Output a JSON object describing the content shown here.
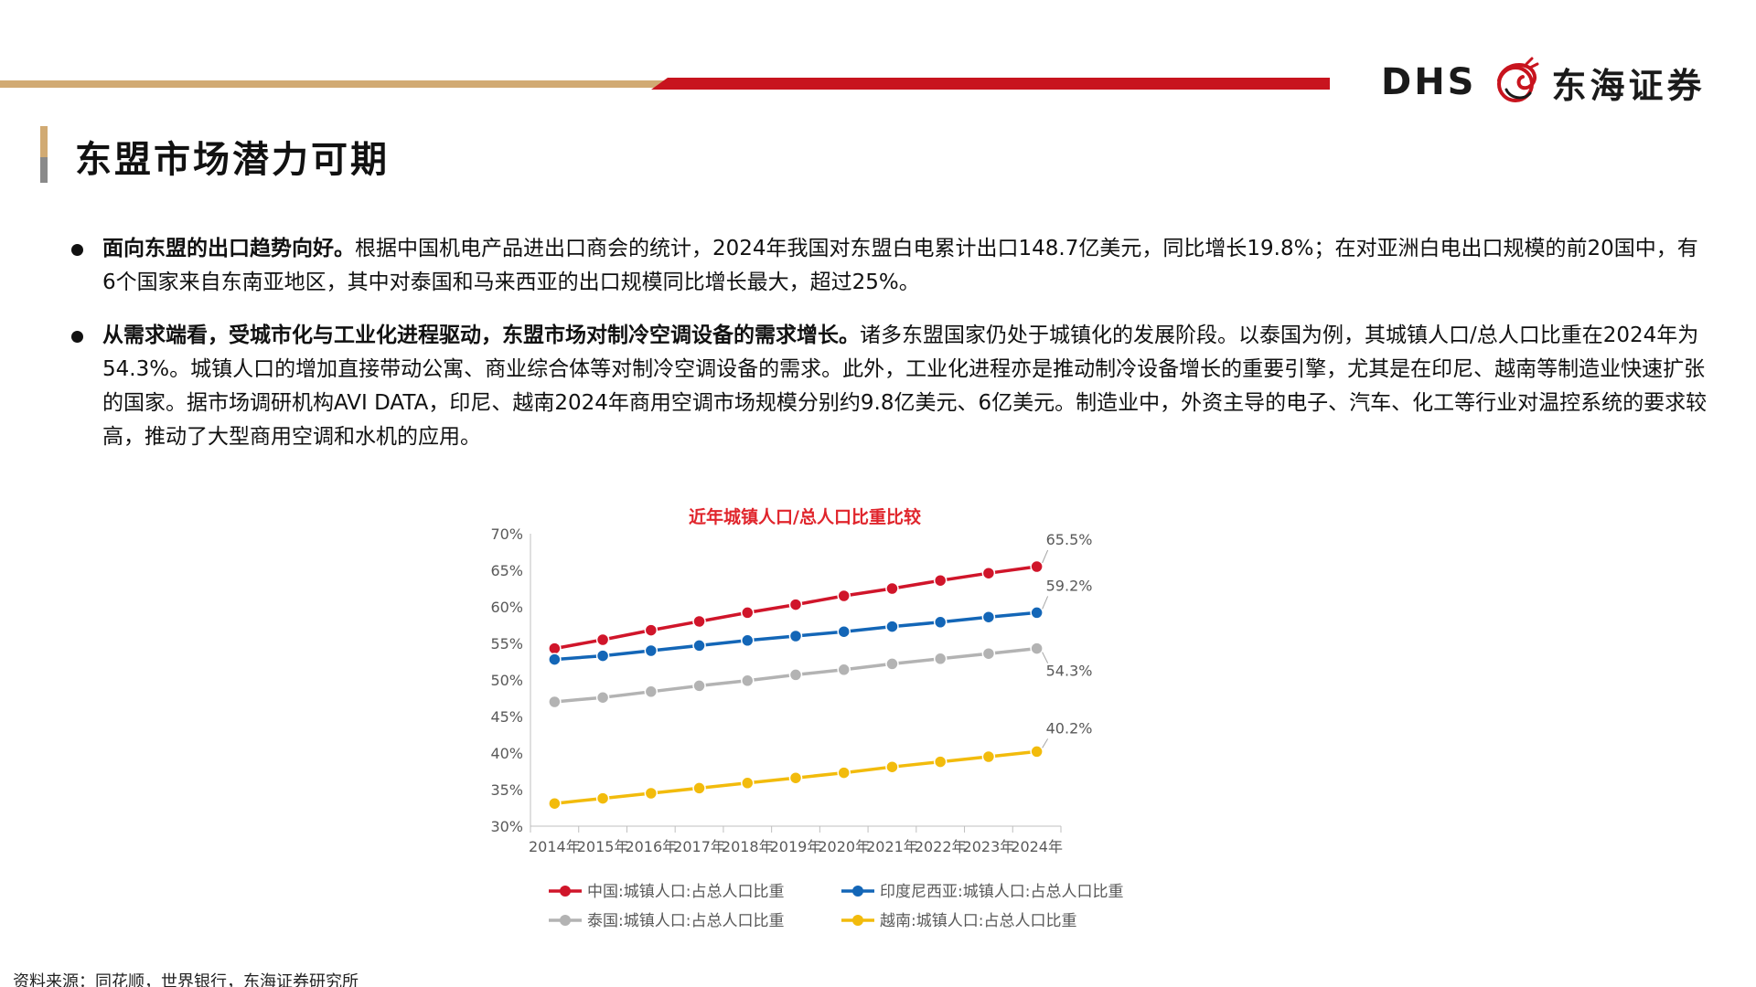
{
  "header": {
    "logo_latin": "DHS",
    "logo_cn": "东海证券",
    "colors": {
      "gold": "#d1aa73",
      "red": "#c8141e"
    }
  },
  "page_title": "东盟市场潜力可期",
  "bullets": [
    {
      "bold": "面向东盟的出口趋势向好。",
      "text": "根据中国机电产品进出口商会的统计，2024年我国对东盟白电累计出口148.7亿美元，同比增长19.8%；在对亚洲白电出口规模的前20国中，有6个国家来自东南亚地区，其中对泰国和马来西亚的出口规模同比增长最大，超过25%。"
    },
    {
      "bold": "从需求端看，受城市化与工业化进程驱动，东盟市场对制冷空调设备的需求增长。",
      "text": "诸多东盟国家仍处于城镇化的发展阶段。以泰国为例，其城镇人口/总人口比重在2024年为54.3%。城镇人口的增加直接带动公寓、商业综合体等对制冷空调设备的需求。此外，工业化进程亦是推动制冷设备增长的重要引擎，尤其是在印尼、越南等制造业快速扩张的国家。据市场调研机构AVI DATA，印尼、越南2024年商用空调市场规模分别约9.8亿美元、6亿美元。制造业中，外资主导的电子、汽车、化工等行业对温控系统的要求较高，推动了大型商用空调和水机的应用。"
    }
  ],
  "chart_data": {
    "type": "line",
    "title": "近年城镇人口/总人口比重比较",
    "categories": [
      "2014年",
      "2015年",
      "2016年",
      "2017年",
      "2018年",
      "2019年",
      "2020年",
      "2021年",
      "2022年",
      "2023年",
      "2024年"
    ],
    "ylim": [
      30,
      70
    ],
    "yticks": [
      30,
      35,
      40,
      45,
      50,
      55,
      60,
      65,
      70
    ],
    "ytick_labels": [
      "30%",
      "35%",
      "40%",
      "45%",
      "50%",
      "55%",
      "60%",
      "65%",
      "70%"
    ],
    "grid": false,
    "legend_position": "bottom",
    "series": [
      {
        "name": "中国:城镇人口:占总人口比重",
        "color": "#d0152a",
        "values": [
          54.3,
          55.5,
          56.8,
          58.0,
          59.2,
          60.3,
          61.5,
          62.5,
          63.6,
          64.6,
          65.5
        ],
        "end_label": "65.5%"
      },
      {
        "name": "印度尼西亚:城镇人口:占总人口比重",
        "color": "#1366b7",
        "values": [
          52.8,
          53.3,
          54.0,
          54.7,
          55.4,
          56.0,
          56.6,
          57.3,
          57.9,
          58.6,
          59.2
        ],
        "end_label": "59.2%"
      },
      {
        "name": "泰国:城镇人口:占总人口比重",
        "color": "#b3b3b3",
        "values": [
          47.0,
          47.6,
          48.4,
          49.2,
          49.9,
          50.7,
          51.4,
          52.2,
          52.9,
          53.6,
          54.3
        ],
        "end_label": "54.3%"
      },
      {
        "name": "越南:城镇人口:占总人口比重",
        "color": "#f2bb0c",
        "values": [
          33.1,
          33.8,
          34.5,
          35.2,
          35.9,
          36.6,
          37.3,
          38.1,
          38.8,
          39.5,
          40.2
        ],
        "end_label": "40.2%"
      }
    ]
  },
  "source_note": "资料来源：同花顺，世界银行，东海证券研究所"
}
